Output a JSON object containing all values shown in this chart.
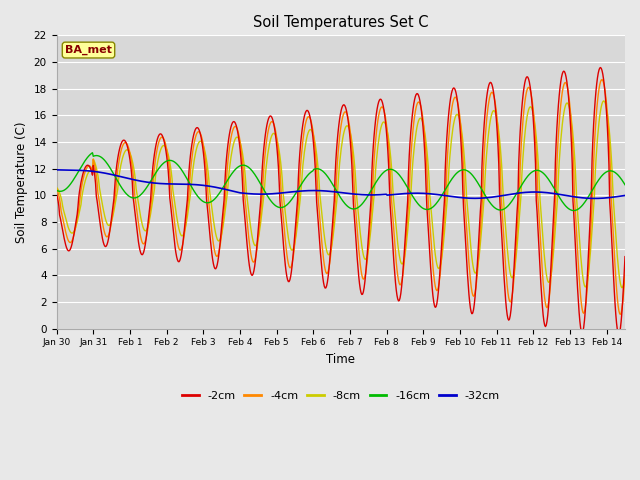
{
  "title": "Soil Temperatures Set C",
  "xlabel": "Time",
  "ylabel": "Soil Temperature (C)",
  "ylim": [
    0,
    22
  ],
  "yticks": [
    0,
    2,
    4,
    6,
    8,
    10,
    12,
    14,
    16,
    18,
    20,
    22
  ],
  "xtick_labels": [
    "Jan 30",
    "Jan 31",
    "Feb 1",
    "Feb 2",
    "Feb 3",
    "Feb 4",
    "Feb 5",
    "Feb 6",
    "Feb 7",
    "Feb 8",
    "Feb 9",
    "Feb 10",
    "Feb 11",
    "Feb 12",
    "Feb 13",
    "Feb 14"
  ],
  "colors": {
    "-2cm": "#dd0000",
    "-4cm": "#ff8800",
    "-8cm": "#cccc00",
    "-16cm": "#00bb00",
    "-32cm": "#0000cc"
  },
  "legend_label": "BA_met",
  "legend_bbox_facecolor": "#ffff99",
  "legend_bbox_edgecolor": "#888800",
  "legend_text_color": "#880000",
  "plot_bg_color": "#d8d8d8",
  "fig_bg_color": "#e8e8e8",
  "grid_color": "#ffffff",
  "n_points_per_day": 48,
  "n_days": 15.5
}
